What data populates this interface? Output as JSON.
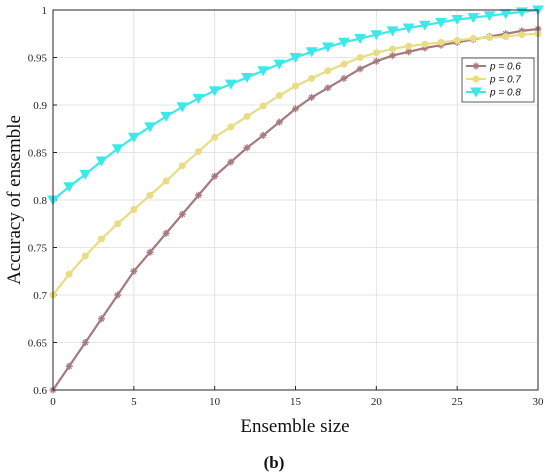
{
  "chart_data": {
    "type": "line",
    "xlabel": "Ensemble size",
    "ylabel": "Accuracy of ensemble",
    "caption": "(b)",
    "xlim": [
      0,
      30
    ],
    "ylim": [
      0.6,
      1.0
    ],
    "xticks": [
      "0",
      "5",
      "10",
      "15",
      "20",
      "25",
      "30"
    ],
    "yticks": [
      "0.6",
      "0.65",
      "0.7",
      "0.75",
      "0.8",
      "0.85",
      "0.9",
      "0.95",
      "1"
    ],
    "grid": true,
    "legend_position": "top-right",
    "x": [
      0,
      1,
      2,
      3,
      4,
      5,
      6,
      7,
      8,
      9,
      10,
      11,
      12,
      13,
      14,
      15,
      16,
      17,
      18,
      19,
      20,
      21,
      22,
      23,
      24,
      25,
      26,
      27,
      28,
      29,
      30
    ],
    "series": [
      {
        "name": "p = 0.6",
        "color": "#A57A7E",
        "marker": "plus",
        "values": [
          0.6,
          0.625,
          0.65,
          0.675,
          0.7,
          0.725,
          0.745,
          0.765,
          0.785,
          0.805,
          0.825,
          0.84,
          0.855,
          0.868,
          0.882,
          0.896,
          0.908,
          0.918,
          0.928,
          0.938,
          0.946,
          0.952,
          0.956,
          0.96,
          0.963,
          0.966,
          0.969,
          0.972,
          0.975,
          0.978,
          0.98
        ]
      },
      {
        "name": "p = 0.7",
        "color": "#E8DC84",
        "marker": "circle",
        "values": [
          0.7,
          0.722,
          0.741,
          0.759,
          0.775,
          0.79,
          0.805,
          0.82,
          0.836,
          0.851,
          0.866,
          0.877,
          0.888,
          0.899,
          0.91,
          0.92,
          0.928,
          0.936,
          0.943,
          0.95,
          0.955,
          0.959,
          0.962,
          0.964,
          0.966,
          0.968,
          0.97,
          0.971,
          0.972,
          0.974,
          0.975
        ]
      },
      {
        "name": "p = 0.8",
        "color": "#3EE8E8",
        "marker": "triangle-down",
        "values": [
          0.8,
          0.814,
          0.827,
          0.841,
          0.854,
          0.866,
          0.877,
          0.888,
          0.898,
          0.907,
          0.915,
          0.922,
          0.929,
          0.936,
          0.943,
          0.95,
          0.956,
          0.961,
          0.966,
          0.97,
          0.974,
          0.978,
          0.981,
          0.984,
          0.987,
          0.99,
          0.992,
          0.994,
          0.996,
          0.998,
          1.0
        ]
      }
    ]
  }
}
